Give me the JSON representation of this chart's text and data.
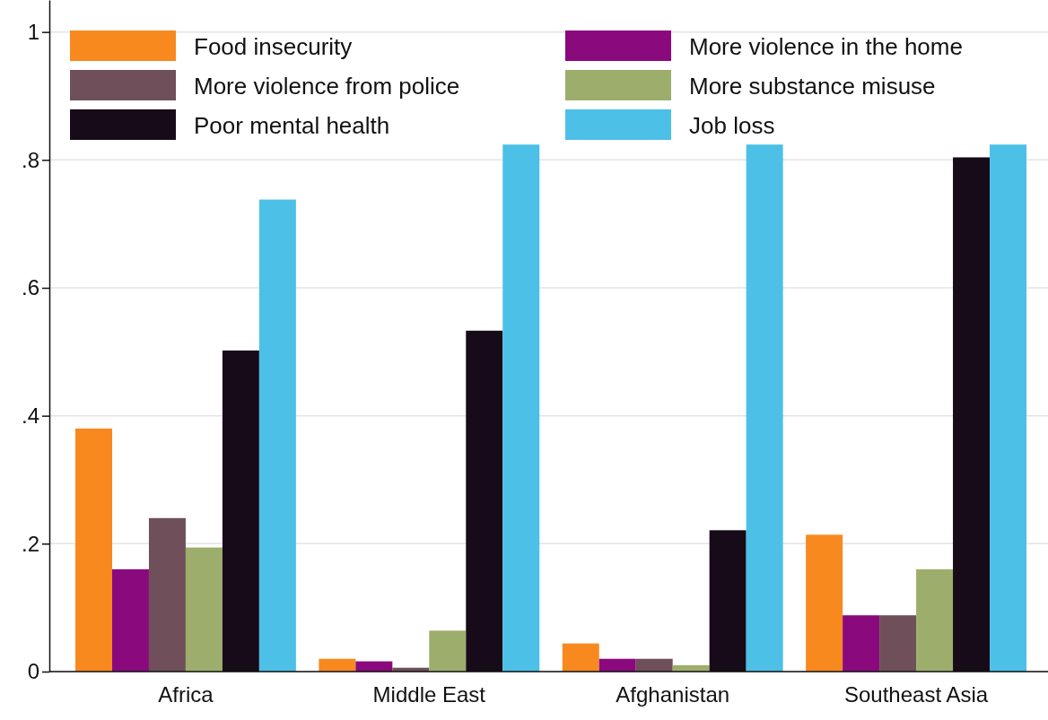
{
  "chart_data": {
    "type": "bar",
    "categories": [
      "Africa",
      "Middle East",
      "Afghanistan",
      "Southeast Asia"
    ],
    "series": [
      {
        "name": "Food insecurity",
        "color": "#f7891f",
        "values": [
          0.38,
          0.02,
          0.044,
          0.214
        ]
      },
      {
        "name": "More violence in the home",
        "color": "#8a0a7d",
        "values": [
          0.16,
          0.016,
          0.02,
          0.088
        ]
      },
      {
        "name": "More violence from police",
        "color": "#6e4f5a",
        "values": [
          0.24,
          0.006,
          0.02,
          0.088
        ]
      },
      {
        "name": "More substance misuse",
        "color": "#9dae6c",
        "values": [
          0.194,
          0.064,
          0.01,
          0.16
        ]
      },
      {
        "name": "Poor mental health",
        "color": "#170a19",
        "values": [
          0.502,
          0.533,
          0.221,
          0.804
        ]
      },
      {
        "name": "Job loss",
        "color": "#4cc0e6",
        "values": [
          0.738,
          0.824,
          0.824,
          0.824
        ]
      }
    ],
    "ylim": [
      0,
      1.05
    ],
    "yticks": [
      0,
      {
        "value": 0.2,
        "label": ".2"
      },
      {
        "value": 0.4,
        "label": ".4"
      },
      {
        "value": 0.6,
        "label": ".6"
      },
      {
        "value": 0.8,
        "label": ".8"
      },
      1
    ],
    "grid": "y",
    "legend": "top left"
  }
}
